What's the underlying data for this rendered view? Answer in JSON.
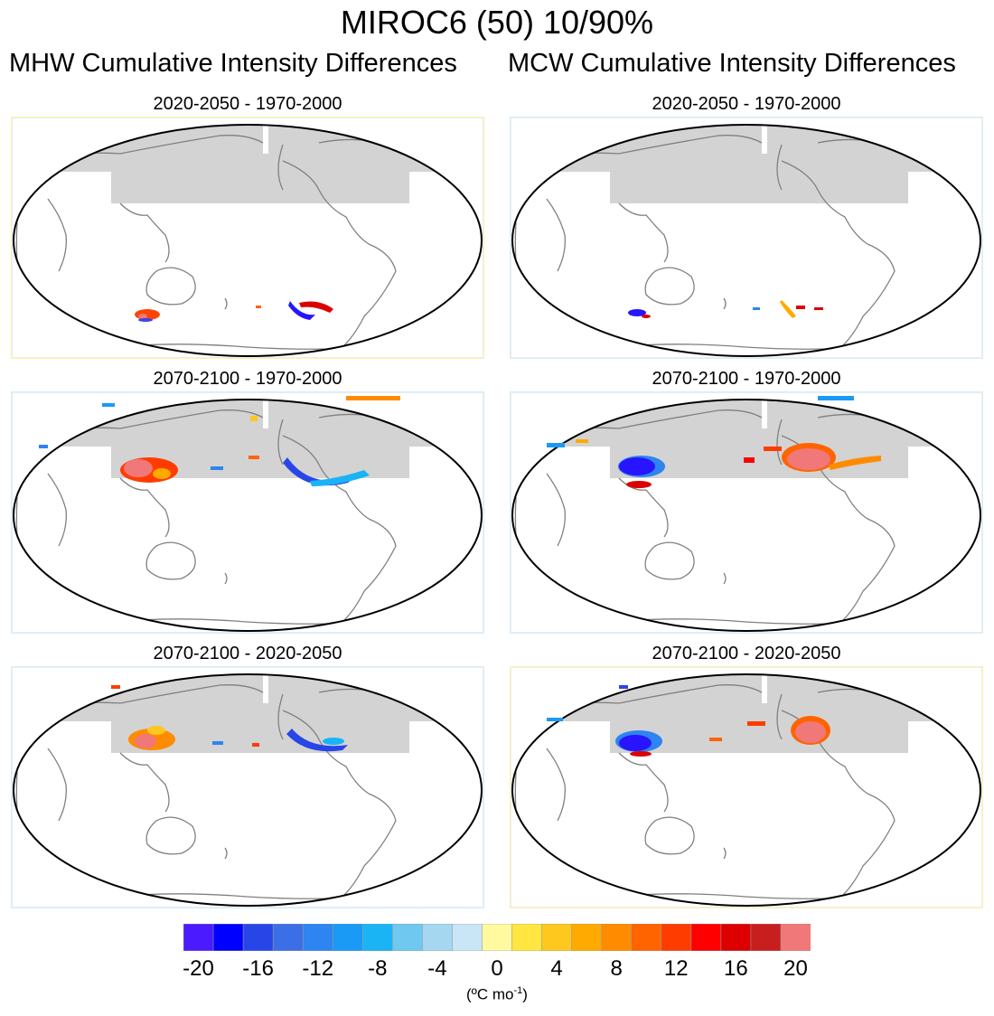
{
  "title": "MIROC6 (50) 10/90%",
  "columns": {
    "left": "MHW Cumulative Intensity Differences",
    "right": "MCW Cumulative Intensity Differences"
  },
  "panels": [
    {
      "title": "2020-2050 - 1970-2000",
      "frame": "#fff2a6"
    },
    {
      "title": "2020-2050 - 1970-2000",
      "frame": "#d9edf6"
    },
    {
      "title": "2070-2100 - 1970-2000",
      "frame": "#d9edf6"
    },
    {
      "title": "2070-2100 - 1970-2000",
      "frame": "#d9edf6"
    },
    {
      "title": "2070-2100 - 2020-2050",
      "frame": "#d9edf6"
    },
    {
      "title": "2070-2100 - 2020-2050",
      "frame": "#fff2a6"
    }
  ],
  "colorbar": {
    "colors": [
      "#4b1aff",
      "#0000ff",
      "#2846e8",
      "#3c6ee6",
      "#2e84f0",
      "#1a9af5",
      "#1ab4f5",
      "#6ec8f0",
      "#a5d7f0",
      "#c8e6f5",
      "#fffaa0",
      "#ffe641",
      "#ffc81e",
      "#ffaa00",
      "#ff8c00",
      "#ff6400",
      "#ff3c00",
      "#ff0000",
      "#dc0000",
      "#c81e1e",
      "#f07878"
    ],
    "ticks": [
      "-20",
      "-16",
      "-12",
      "-8",
      "-4",
      "0",
      "4",
      "8",
      "12",
      "16",
      "20"
    ],
    "units_base": "(ºC mo",
    "units_exp": "-1",
    "units_end": ")"
  }
}
